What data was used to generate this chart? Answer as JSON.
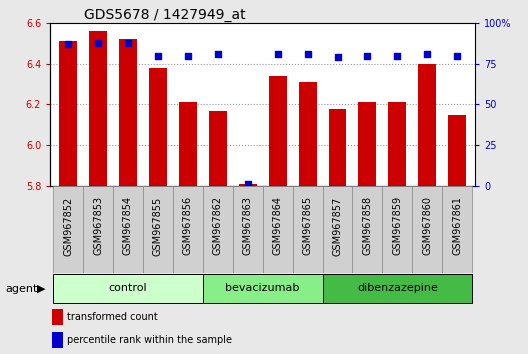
{
  "title": "GDS5678 / 1427949_at",
  "samples": [
    "GSM967852",
    "GSM967853",
    "GSM967854",
    "GSM967855",
    "GSM967856",
    "GSM967862",
    "GSM967863",
    "GSM967864",
    "GSM967865",
    "GSM967857",
    "GSM967858",
    "GSM967859",
    "GSM967860",
    "GSM967861"
  ],
  "bar_values": [
    6.51,
    6.56,
    6.52,
    6.38,
    6.21,
    6.17,
    5.81,
    6.34,
    6.31,
    6.18,
    6.21,
    6.21,
    6.4,
    6.15
  ],
  "percentile_values": [
    87,
    88,
    88,
    80,
    80,
    81,
    1,
    81,
    81,
    79,
    80,
    80,
    81,
    80
  ],
  "ylim_left": [
    5.8,
    6.6
  ],
  "ylim_right": [
    0,
    100
  ],
  "yticks_left": [
    5.8,
    6.0,
    6.2,
    6.4,
    6.6
  ],
  "yticks_right": [
    0,
    25,
    50,
    75,
    100
  ],
  "bar_color": "#cc0000",
  "dot_color": "#0000cc",
  "groups": [
    {
      "label": "control",
      "start": 0,
      "end": 4,
      "color": "#ccffcc"
    },
    {
      "label": "bevacizumab",
      "start": 5,
      "end": 8,
      "color": "#88ee88"
    },
    {
      "label": "dibenzazepine",
      "start": 9,
      "end": 13,
      "color": "#44bb44"
    }
  ],
  "agent_label": "agent",
  "legend_bar_label": "transformed count",
  "legend_dot_label": "percentile rank within the sample",
  "grid_color": "#999999",
  "background_color": "#e8e8e8",
  "plot_bg": "#ffffff",
  "sample_bg": "#d0d0d0",
  "title_fontsize": 10,
  "tick_fontsize": 7,
  "label_fontsize": 8
}
